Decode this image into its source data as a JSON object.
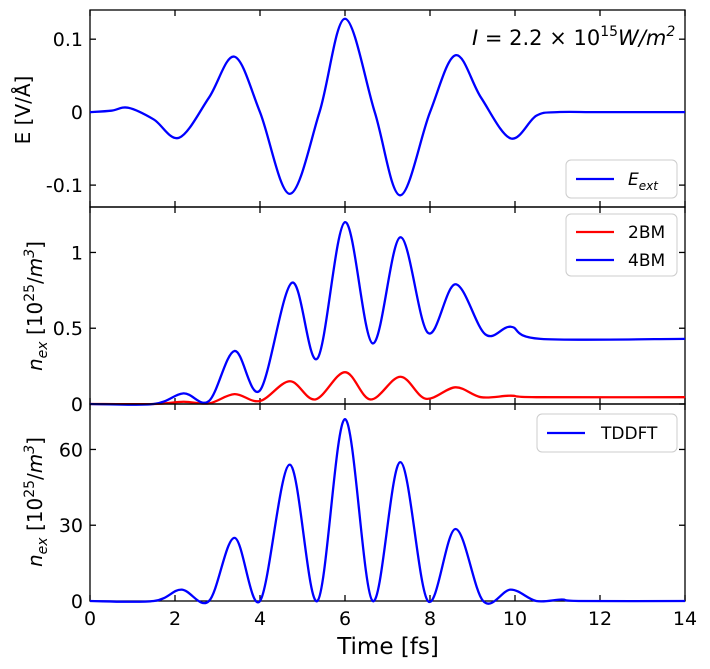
{
  "chart_data": [
    {
      "type": "line",
      "panel": "top",
      "ylabel": "E [V/Å]",
      "xlim": [
        0,
        14
      ],
      "ylim": [
        -0.13,
        0.14
      ],
      "yticks": [
        0.1,
        0,
        -0.1
      ],
      "ytick_labels": [
        "0.1",
        "0",
        "-0.1"
      ],
      "annotation": "I = 2.2 × 10¹⁵ W/m²",
      "legend_position": "bottom-right",
      "series": [
        {
          "name": "E_ext",
          "label": "E",
          "label_sub": "ext",
          "color": "#0000ff",
          "x": [
            0,
            0.5,
            0.9,
            1.5,
            2.1,
            2.8,
            3.4,
            4.0,
            4.7,
            5.4,
            6.0,
            6.7,
            7.3,
            8.0,
            8.6,
            9.2,
            9.9,
            10.5,
            11.0,
            12.0,
            14.0
          ],
          "y": [
            0,
            0.002,
            0.006,
            -0.01,
            -0.035,
            0.02,
            0.076,
            0.0,
            -0.112,
            0.0,
            0.128,
            0.0,
            -0.114,
            0.0,
            0.078,
            0.02,
            -0.036,
            -0.005,
            0.0,
            0.0,
            0.0
          ]
        }
      ]
    },
    {
      "type": "line",
      "panel": "middle",
      "ylabel": "n_ex [10²⁵/m³]",
      "xlim": [
        0,
        14
      ],
      "ylim": [
        0,
        1.3
      ],
      "yticks": [
        0,
        0.5,
        1
      ],
      "ytick_labels": [
        "0",
        "0.5",
        "1"
      ],
      "legend_position": "top-right",
      "series": [
        {
          "name": "2BM",
          "color": "#ff0000",
          "x": [
            0,
            1.5,
            2.2,
            2.8,
            3.4,
            4.0,
            4.7,
            5.3,
            6.0,
            6.6,
            7.3,
            7.9,
            8.6,
            9.2,
            9.9,
            10.5,
            14.0
          ],
          "y": [
            0,
            0.0,
            0.015,
            0.004,
            0.065,
            0.02,
            0.15,
            0.03,
            0.21,
            0.03,
            0.18,
            0.035,
            0.11,
            0.045,
            0.055,
            0.045,
            0.045
          ]
        },
        {
          "name": "4BM",
          "color": "#0000ff",
          "x": [
            0,
            1.5,
            2.2,
            2.8,
            3.4,
            4.0,
            4.75,
            5.35,
            6.0,
            6.65,
            7.3,
            7.95,
            8.6,
            9.3,
            9.9,
            10.6,
            14.0
          ],
          "y": [
            0,
            0.0,
            0.07,
            0.02,
            0.35,
            0.09,
            0.8,
            0.3,
            1.2,
            0.4,
            1.1,
            0.47,
            0.79,
            0.46,
            0.51,
            0.43,
            0.43
          ]
        }
      ]
    },
    {
      "type": "line",
      "panel": "bottom",
      "ylabel": "n_ex [10²⁵/m³]",
      "xlabel": "Time [fs]",
      "xlim": [
        0,
        14
      ],
      "ylim": [
        0,
        78
      ],
      "xticks": [
        0,
        2,
        4,
        6,
        8,
        10,
        12,
        14
      ],
      "xtick_labels": [
        "0",
        "2",
        "4",
        "6",
        "8",
        "10",
        "12",
        "14"
      ],
      "yticks": [
        0,
        30,
        60
      ],
      "ytick_labels": [
        "0",
        "30",
        "60"
      ],
      "legend_position": "top-right",
      "series": [
        {
          "name": "TDDFT",
          "color": "#0000ff",
          "x": [
            0,
            1.5,
            2.15,
            2.8,
            3.4,
            4.0,
            4.7,
            5.35,
            6.0,
            6.65,
            7.3,
            7.95,
            8.6,
            9.25,
            9.9,
            10.5,
            11.1,
            11.5,
            14.0
          ],
          "y": [
            0,
            0.0,
            4.5,
            0.0,
            25,
            0.0,
            54,
            0.0,
            72,
            0.0,
            55,
            0.0,
            28.5,
            0.0,
            4.5,
            0.0,
            0.6,
            0.0,
            0.0
          ]
        }
      ]
    }
  ]
}
